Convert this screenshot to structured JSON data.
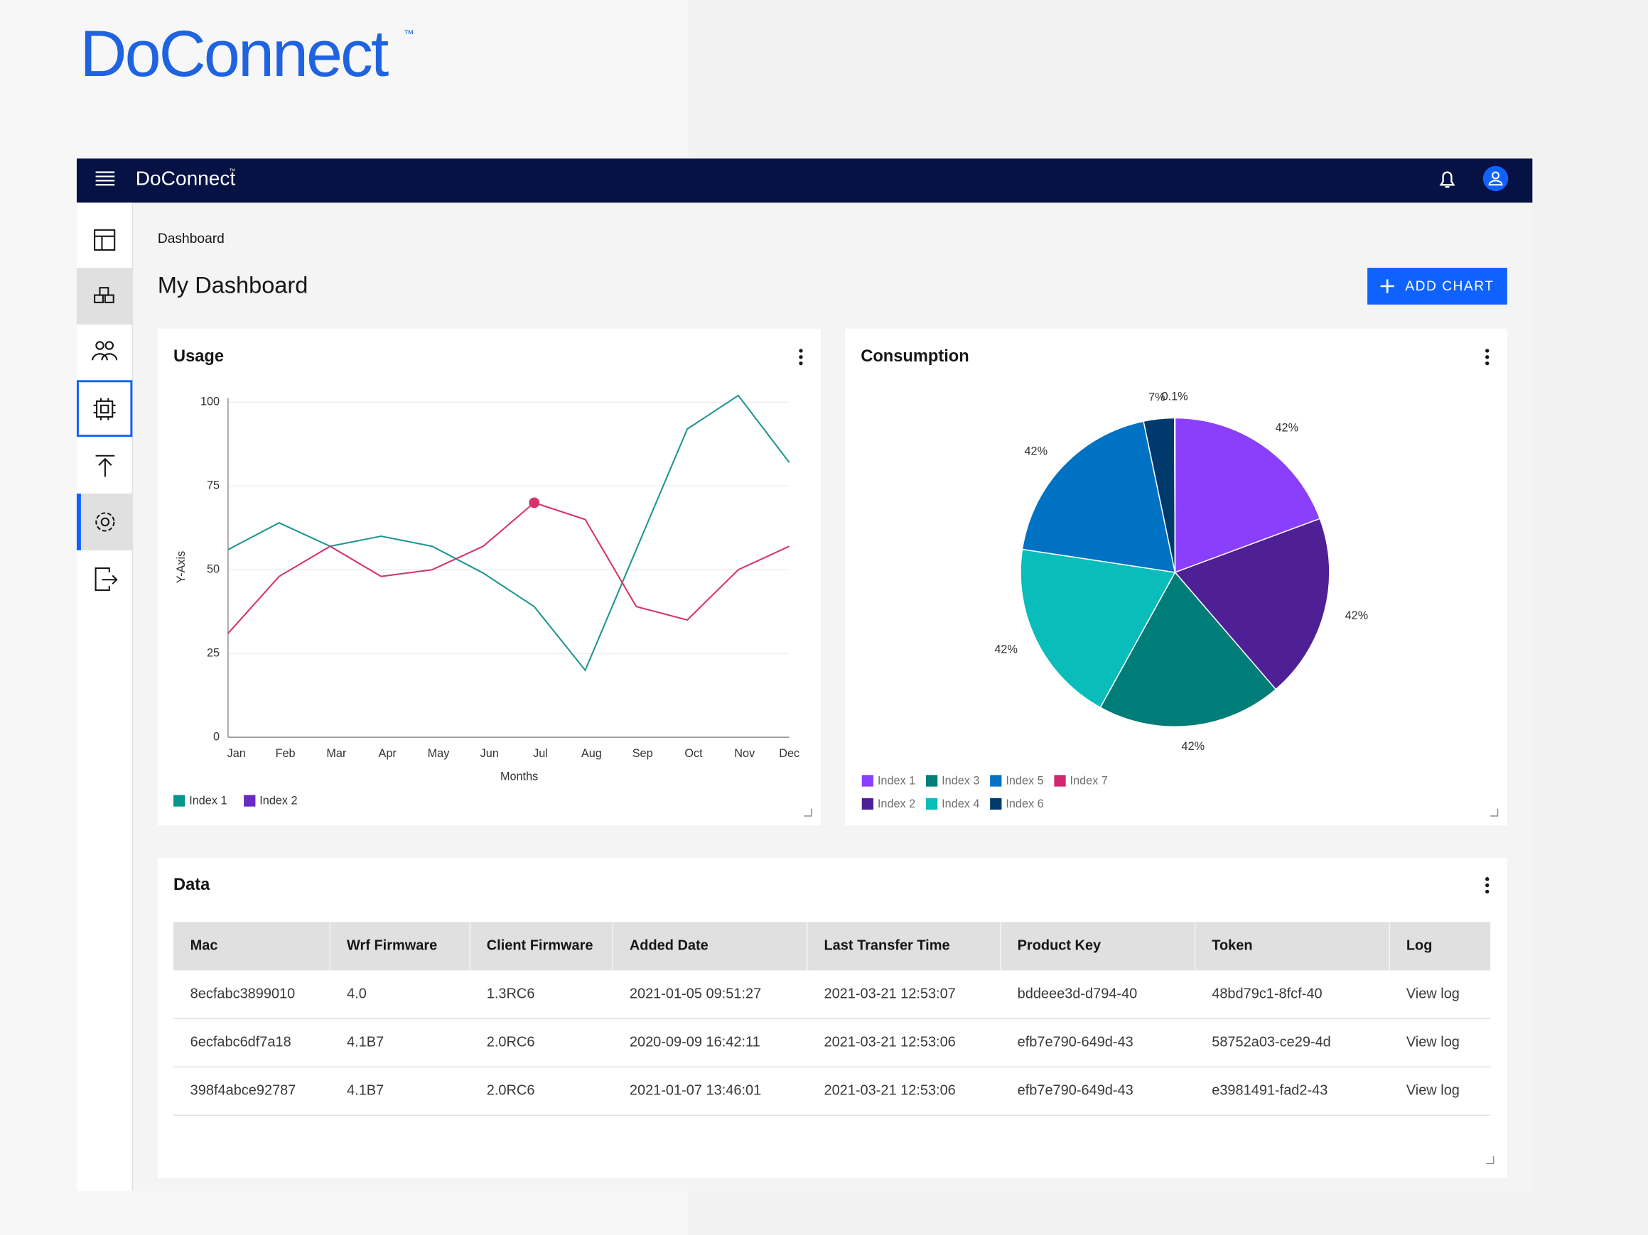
{
  "logo": "DoConnect",
  "logo_mark": "™",
  "topbar": {
    "brand": "DoConnect",
    "brand_mark": "™"
  },
  "breadcrumb": "Dashboard",
  "page_title": "My Dashboard",
  "add_button": "ADD CHART",
  "chart_data": [
    {
      "type": "line",
      "title": "Usage",
      "x_label": "Months",
      "y_label": "Y-Axis",
      "categories": [
        "Jan",
        "Feb",
        "Mar",
        "Apr",
        "May",
        "Jun",
        "Jul",
        "Aug",
        "Sep",
        "Oct",
        "Nov",
        "Dec"
      ],
      "ylim": [
        0,
        100
      ],
      "yticks": [
        0,
        25,
        50,
        75,
        100
      ],
      "grid": true,
      "series": [
        {
          "name": "Index 1",
          "color": "#1e9690",
          "legend_color": "#08968c",
          "values": [
            56,
            64,
            57,
            60,
            57,
            49,
            39,
            20,
            56,
            92,
            102,
            82
          ]
        },
        {
          "name": "Index 2",
          "color": "#d6336c",
          "legend_color": "#6929c4",
          "highlighted_point": 6,
          "values": [
            31,
            48,
            57,
            48,
            50,
            57,
            70,
            65,
            39,
            35,
            50,
            57
          ]
        }
      ]
    },
    {
      "type": "pie",
      "title": "Consumption",
      "categories": [
        "Index 1",
        "Index 2",
        "Index 3",
        "Index 4",
        "Index 5",
        "Index 6",
        "Index 7"
      ],
      "values": [
        42,
        42,
        42,
        42,
        42,
        7,
        0.1
      ],
      "value_labels": [
        "42%",
        "42%",
        "42%",
        "42%",
        "42%",
        "7%",
        "0.1%"
      ],
      "colors": [
        "#8a3ffc",
        "#4f1f96",
        "#007d79",
        "#08bdba",
        "#0072c3",
        "#003a6d",
        "#d12771"
      ]
    }
  ],
  "table": {
    "title": "Data",
    "columns": [
      "Mac",
      "Wrf Firmware",
      "Client Firmware",
      "Added Date",
      "Last Transfer Time",
      "Product Key",
      "Token",
      "Log"
    ],
    "rows": [
      [
        "8ecfabc3899010",
        "4.0",
        "1.3RC6",
        "2021-01-05 09:51:27",
        "2021-03-21 12:53:07",
        "bddeee3d-d794-40",
        "48bd79c1-8fcf-40",
        "View log"
      ],
      [
        "6ecfabc6df7a18",
        "4.1B7",
        "2.0RC6",
        "2020-09-09 16:42:11",
        "2021-03-21 12:53:06",
        "efb7e790-649d-43",
        "58752a03-ce29-4d",
        "View log"
      ],
      [
        "398f4abce92787",
        "4.1B7",
        "2.0RC6",
        "2021-01-07 13:46:01",
        "2021-03-21 12:53:06",
        "efb7e790-649d-43",
        "e3981491-fad2-43",
        "View log"
      ]
    ]
  }
}
